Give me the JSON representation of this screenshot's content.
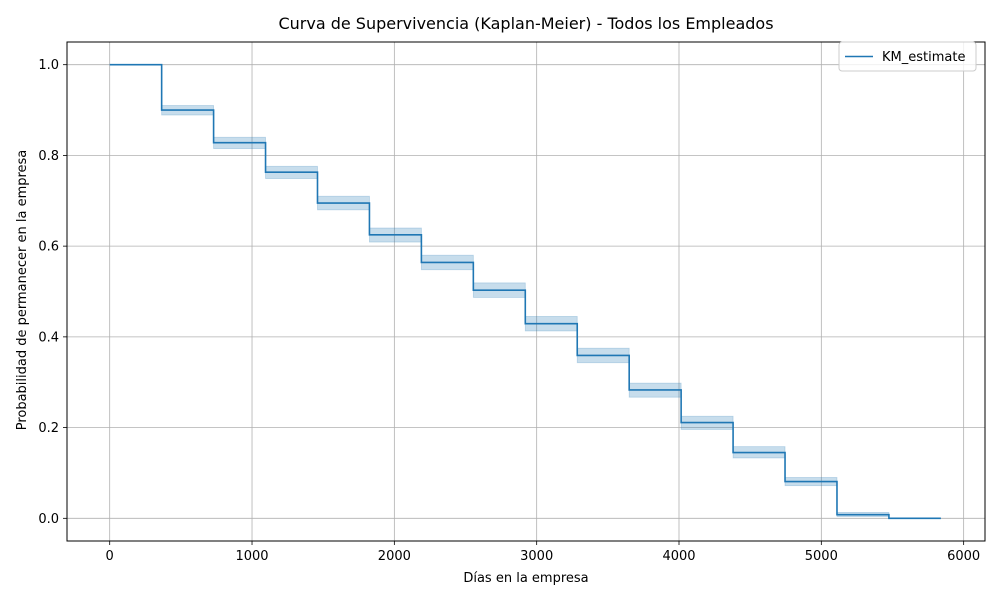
{
  "chart_data": {
    "type": "line",
    "step": "post",
    "title": "Curva de Supervivencia (Kaplan-Meier) - Todos los Empleados",
    "xlabel": "Días en la empresa",
    "ylabel": "Probabilidad de permanecer en la empresa",
    "xlim": [
      -300,
      6150
    ],
    "ylim": [
      -0.05,
      1.05
    ],
    "xticks": [
      0,
      1000,
      2000,
      3000,
      4000,
      5000,
      6000
    ],
    "xtick_labels": [
      "0",
      "1000",
      "2000",
      "3000",
      "4000",
      "5000",
      "6000"
    ],
    "yticks": [
      0.0,
      0.2,
      0.4,
      0.6,
      0.8,
      1.0
    ],
    "ytick_labels": [
      "0.0",
      "0.2",
      "0.4",
      "0.6",
      "0.8",
      "1.0"
    ],
    "grid": true,
    "legend_position": "top-right",
    "series": [
      {
        "name": "KM_estimate",
        "color": "#1f77b4",
        "x": [
          0,
          365,
          730,
          1095,
          1460,
          1825,
          2190,
          2555,
          2920,
          3285,
          3650,
          4015,
          4380,
          4745,
          5110,
          5475,
          5840
        ],
        "y": [
          1.0,
          0.9,
          0.828,
          0.763,
          0.695,
          0.625,
          0.564,
          0.503,
          0.429,
          0.359,
          0.283,
          0.211,
          0.145,
          0.081,
          0.008,
          0.0,
          0.0
        ],
        "ci_lower": [
          1.0,
          0.889,
          0.815,
          0.749,
          0.68,
          0.609,
          0.548,
          0.487,
          0.413,
          0.343,
          0.267,
          0.196,
          0.133,
          0.072,
          0.004,
          0.0,
          0.0
        ],
        "ci_upper": [
          1.0,
          0.91,
          0.84,
          0.776,
          0.71,
          0.64,
          0.58,
          0.519,
          0.445,
          0.375,
          0.298,
          0.225,
          0.158,
          0.09,
          0.013,
          0.0,
          0.0
        ],
        "ci_color": "#1f77b4"
      }
    ]
  },
  "colors": {
    "grid": "#b0b0b0",
    "axes": "#000000",
    "legend_border": "#cccccc"
  }
}
